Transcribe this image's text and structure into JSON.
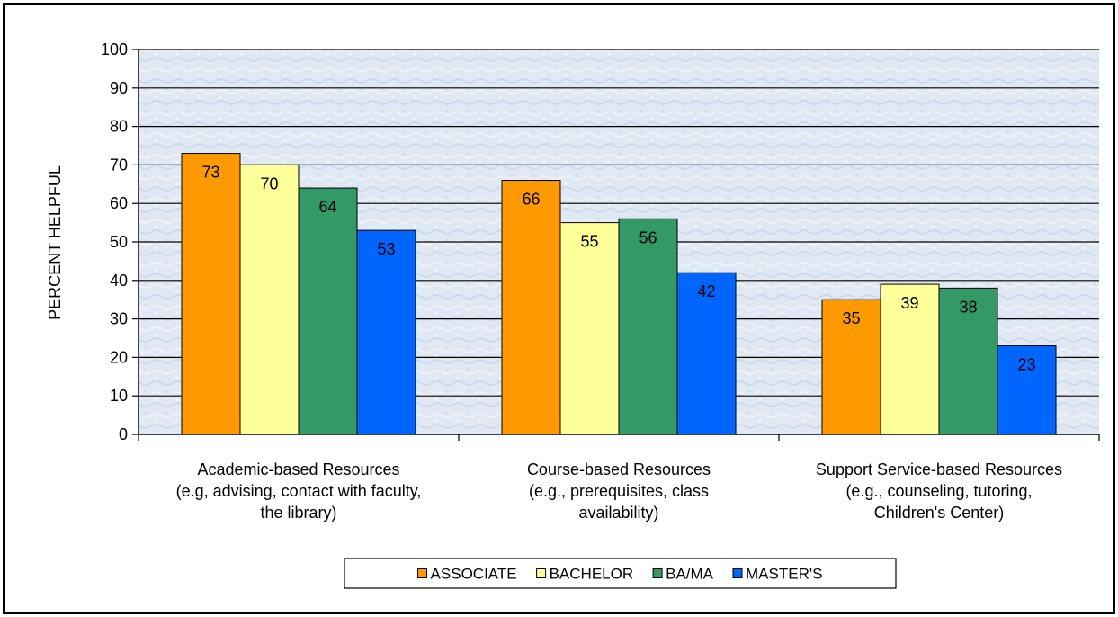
{
  "chart_data": {
    "type": "bar",
    "ylabel": "PERCENT HELPFUL",
    "ylim": [
      0,
      100
    ],
    "ytick_step": 10,
    "grid": true,
    "legend_position": "bottom",
    "categories": [
      [
        "Academic-based Resources",
        "(e.g, advising, contact with faculty,",
        "the library)"
      ],
      [
        "Course-based Resources",
        "(e.g., prerequisites, class",
        "availability)"
      ],
      [
        "Support Service-based Resources",
        "(e.g., counseling, tutoring,",
        "Children's Center)"
      ]
    ],
    "series": [
      {
        "name": "ASSOCIATE",
        "color": "#ff9900",
        "values": [
          73,
          66,
          35
        ]
      },
      {
        "name": "BACHELOR",
        "color": "#ffff99",
        "values": [
          70,
          55,
          39
        ]
      },
      {
        "name": "BA/MA",
        "color": "#339966",
        "values": [
          64,
          56,
          38
        ]
      },
      {
        "name": "MASTER'S",
        "color": "#0066ff",
        "values": [
          53,
          42,
          23
        ]
      }
    ],
    "colors": {
      "plot_background": "#dfe8f3",
      "gridline": "#000000",
      "bar_outline": "#000000"
    }
  }
}
